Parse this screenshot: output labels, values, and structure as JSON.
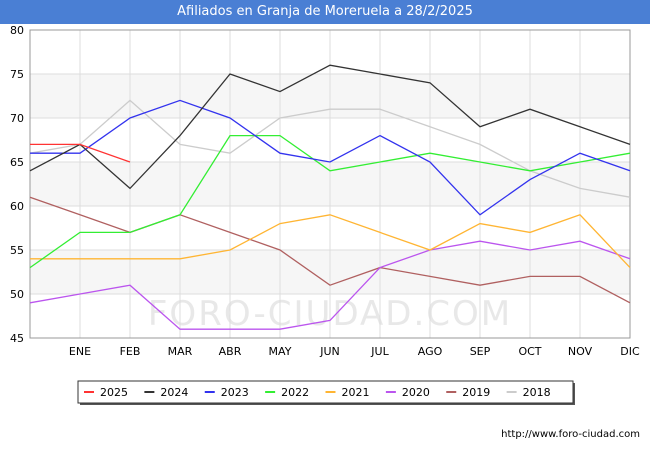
{
  "title": "Afiliados en Granja de Moreruela a 28/2/2025",
  "watermark": "FORO-CIUDAD.COM",
  "source": "http://www.foro-ciudad.com",
  "chart_data": {
    "type": "line",
    "title": "Afiliados en Granja de Moreruela a 28/2/2025",
    "categories": [
      "",
      "ENE",
      "FEB",
      "MAR",
      "ABR",
      "MAY",
      "JUN",
      "JUL",
      "AGO",
      "SEP",
      "OCT",
      "NOV",
      "DIC"
    ],
    "ylim": [
      45,
      80
    ],
    "yticks": [
      45,
      50,
      55,
      60,
      65,
      70,
      75,
      80
    ],
    "grid": true,
    "legend_position": "bottom",
    "series": [
      {
        "name": "2025",
        "color": "#ff3333",
        "values": [
          67,
          67,
          65,
          null,
          null,
          null,
          null,
          null,
          null,
          null,
          null,
          null,
          null
        ]
      },
      {
        "name": "2024",
        "color": "#333333",
        "values": [
          64,
          67,
          62,
          68,
          75,
          73,
          76,
          75,
          74,
          69,
          71,
          69,
          67
        ]
      },
      {
        "name": "2023",
        "color": "#3333ee",
        "values": [
          66,
          66,
          70,
          72,
          70,
          66,
          65,
          68,
          65,
          59,
          63,
          66,
          64
        ]
      },
      {
        "name": "2022",
        "color": "#33ee33",
        "values": [
          53,
          57,
          57,
          59,
          68,
          68,
          64,
          65,
          66,
          65,
          64,
          65,
          66
        ]
      },
      {
        "name": "2021",
        "color": "#ffb533",
        "values": [
          54,
          54,
          54,
          54,
          55,
          58,
          59,
          57,
          55,
          58,
          57,
          59,
          53
        ]
      },
      {
        "name": "2020",
        "color": "#bb55ee",
        "values": [
          49,
          50,
          51,
          46,
          46,
          46,
          47,
          53,
          55,
          56,
          55,
          56,
          54
        ]
      },
      {
        "name": "2019",
        "color": "#b06060",
        "values": [
          61,
          59,
          57,
          59,
          57,
          55,
          51,
          53,
          52,
          51,
          52,
          52,
          49
        ]
      },
      {
        "name": "2018",
        "color": "#cccccc",
        "values": [
          66,
          67,
          72,
          67,
          66,
          70,
          71,
          71,
          69,
          67,
          64,
          62,
          61
        ]
      }
    ]
  }
}
